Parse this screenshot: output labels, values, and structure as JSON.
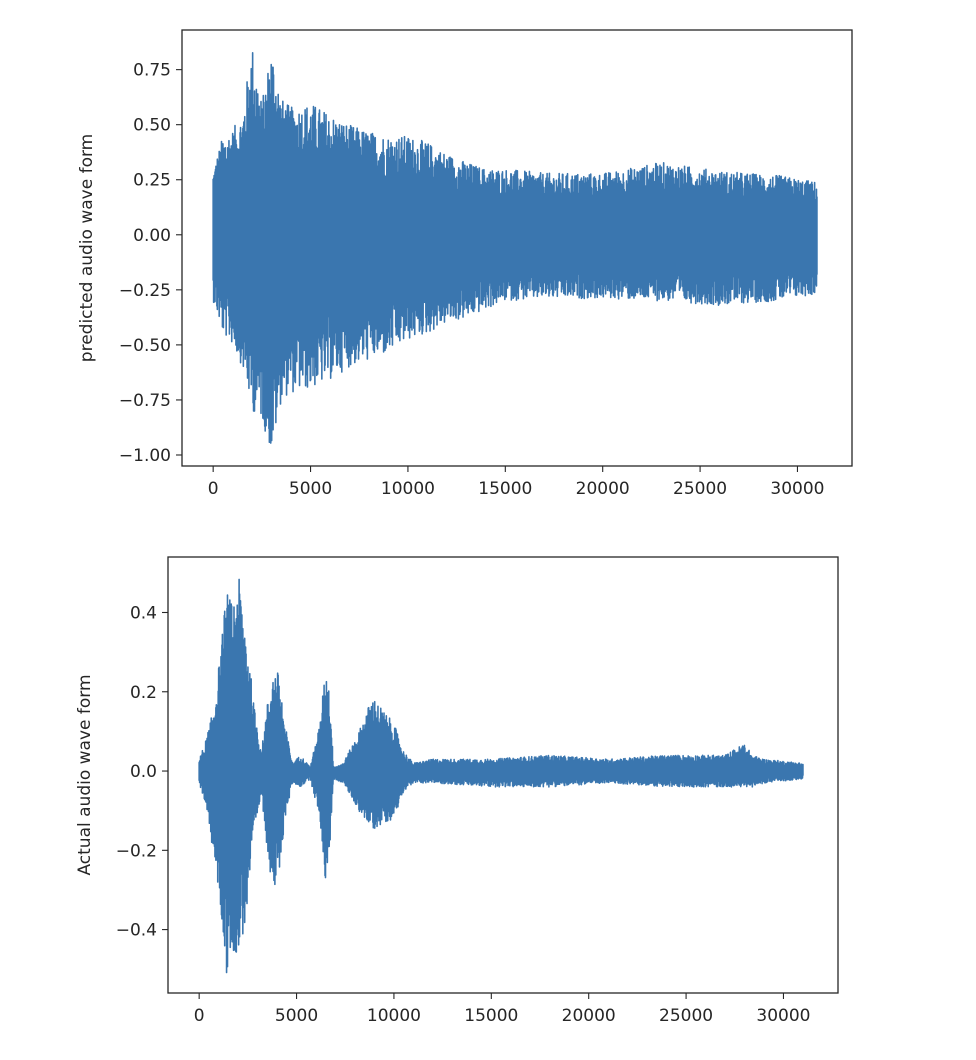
{
  "colors": {
    "series": "#3a76af",
    "axes": "#262626",
    "background": "#ffffff"
  },
  "chart_data": [
    {
      "type": "line",
      "title": "",
      "xlabel": "",
      "ylabel": "predicted audio wave form",
      "xlim": [
        -1600,
        32800
      ],
      "ylim": [
        -1.05,
        0.93
      ],
      "xticks": [
        0,
        5000,
        10000,
        15000,
        20000,
        25000,
        30000
      ],
      "xtick_labels": [
        "0",
        "5000",
        "10000",
        "15000",
        "20000",
        "25000",
        "30000"
      ],
      "yticks": [
        0.75,
        0.5,
        0.25,
        0.0,
        -0.25,
        -0.5,
        -0.75,
        -1.0
      ],
      "ytick_labels": [
        "0.75",
        "0.50",
        "0.25",
        "0.00",
        "−0.25",
        "−0.50",
        "−0.75",
        "−1.00"
      ],
      "grid": false,
      "series": [
        {
          "n_samples": 31200,
          "envelope_x": [
            0,
            500,
            1000,
            1500,
            2000,
            2500,
            3000,
            3500,
            4000,
            5000,
            6000,
            7000,
            8000,
            9000,
            10000,
            11000,
            12000,
            13000,
            14000,
            15000,
            17000,
            20000,
            23000,
            26000,
            29000,
            31000
          ],
          "envelope_max": [
            0.3,
            0.45,
            0.48,
            0.55,
            0.87,
            0.6,
            0.86,
            0.62,
            0.58,
            0.6,
            0.55,
            0.5,
            0.47,
            0.45,
            0.45,
            0.42,
            0.37,
            0.33,
            0.3,
            0.3,
            0.28,
            0.28,
            0.33,
            0.29,
            0.27,
            0.24
          ],
          "envelope_min": [
            -0.3,
            -0.45,
            -0.5,
            -0.6,
            -0.8,
            -0.84,
            -1.0,
            -0.75,
            -0.72,
            -0.7,
            -0.66,
            -0.6,
            -0.57,
            -0.54,
            -0.48,
            -0.45,
            -0.4,
            -0.38,
            -0.34,
            -0.3,
            -0.29,
            -0.29,
            -0.3,
            -0.32,
            -0.3,
            -0.27
          ]
        }
      ]
    },
    {
      "type": "line",
      "title": "",
      "xlabel": "",
      "ylabel": "Actual audio wave form",
      "xlim": [
        -1600,
        32800
      ],
      "ylim": [
        -0.56,
        0.54
      ],
      "xticks": [
        0,
        5000,
        10000,
        15000,
        20000,
        25000,
        30000
      ],
      "xtick_labels": [
        "0",
        "5000",
        "10000",
        "15000",
        "20000",
        "25000",
        "30000"
      ],
      "yticks": [
        0.4,
        0.2,
        0.0,
        -0.2,
        -0.4
      ],
      "ytick_labels": [
        "0.4",
        "0.2",
        "0.0",
        "−0.2",
        "−0.4"
      ],
      "grid": false,
      "series": [
        {
          "n_samples": 31200,
          "envelope_x": [
            0,
            300,
            700,
            1100,
            1400,
            1700,
            2000,
            2400,
            2800,
            3200,
            3500,
            3800,
            4100,
            4400,
            4800,
            5200,
            5700,
            6200,
            6500,
            6700,
            6900,
            7400,
            8200,
            8900,
            9500,
            10000,
            10500,
            11000,
            12000,
            15000,
            18000,
            21000,
            24000,
            27000,
            28000,
            28400,
            29000,
            31000
          ],
          "envelope_max": [
            0.03,
            0.07,
            0.15,
            0.3,
            0.46,
            0.42,
            0.5,
            0.37,
            0.17,
            0.05,
            0.17,
            0.25,
            0.25,
            0.12,
            0.02,
            0.04,
            0.01,
            0.12,
            0.27,
            0.2,
            0.01,
            0.02,
            0.1,
            0.19,
            0.15,
            0.12,
            0.05,
            0.02,
            0.03,
            0.03,
            0.04,
            0.03,
            0.04,
            0.04,
            0.07,
            0.04,
            0.03,
            0.02
          ],
          "envelope_min": [
            -0.03,
            -0.08,
            -0.2,
            -0.35,
            -0.52,
            -0.45,
            -0.47,
            -0.38,
            -0.17,
            -0.06,
            -0.2,
            -0.31,
            -0.28,
            -0.12,
            -0.03,
            -0.04,
            -0.02,
            -0.12,
            -0.29,
            -0.2,
            -0.02,
            -0.03,
            -0.1,
            -0.15,
            -0.13,
            -0.12,
            -0.05,
            -0.03,
            -0.03,
            -0.04,
            -0.04,
            -0.03,
            -0.04,
            -0.04,
            -0.04,
            -0.04,
            -0.03,
            -0.02
          ]
        }
      ]
    }
  ]
}
